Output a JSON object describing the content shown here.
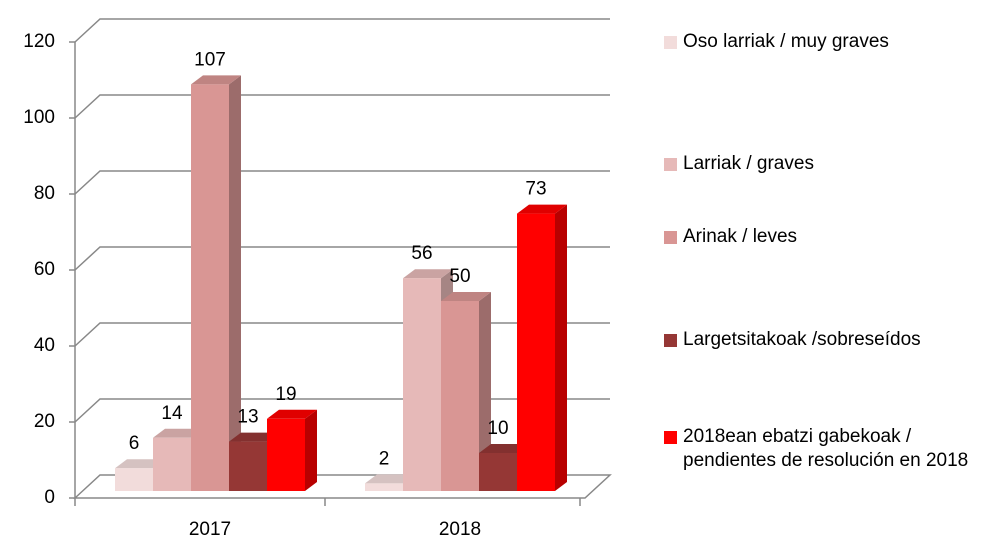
{
  "chart_data": {
    "type": "bar3d",
    "categories": [
      "2017",
      "2018"
    ],
    "series": [
      {
        "name": "Oso larriak  / muy graves",
        "color": "#f2dcdb",
        "values": [
          6,
          2
        ]
      },
      {
        "name": "Larriak / graves",
        "color": "#e6b9b8",
        "values": [
          14,
          56
        ]
      },
      {
        "name": "Arinak / leves",
        "color": "#d99694",
        "values": [
          107,
          50
        ]
      },
      {
        "name": "Largetsitakoak /sobreseídos",
        "color": "#953735",
        "values": [
          13,
          10
        ]
      },
      {
        "name": "2018ean ebatzi gabekoak  / pendientes de resolución en 2018",
        "color": "#ff0000",
        "values": [
          19,
          73
        ]
      }
    ],
    "ylim": [
      0,
      120
    ],
    "yticks": [
      0,
      20,
      40,
      60,
      80,
      100,
      120
    ],
    "grid": true,
    "legend": "right"
  }
}
